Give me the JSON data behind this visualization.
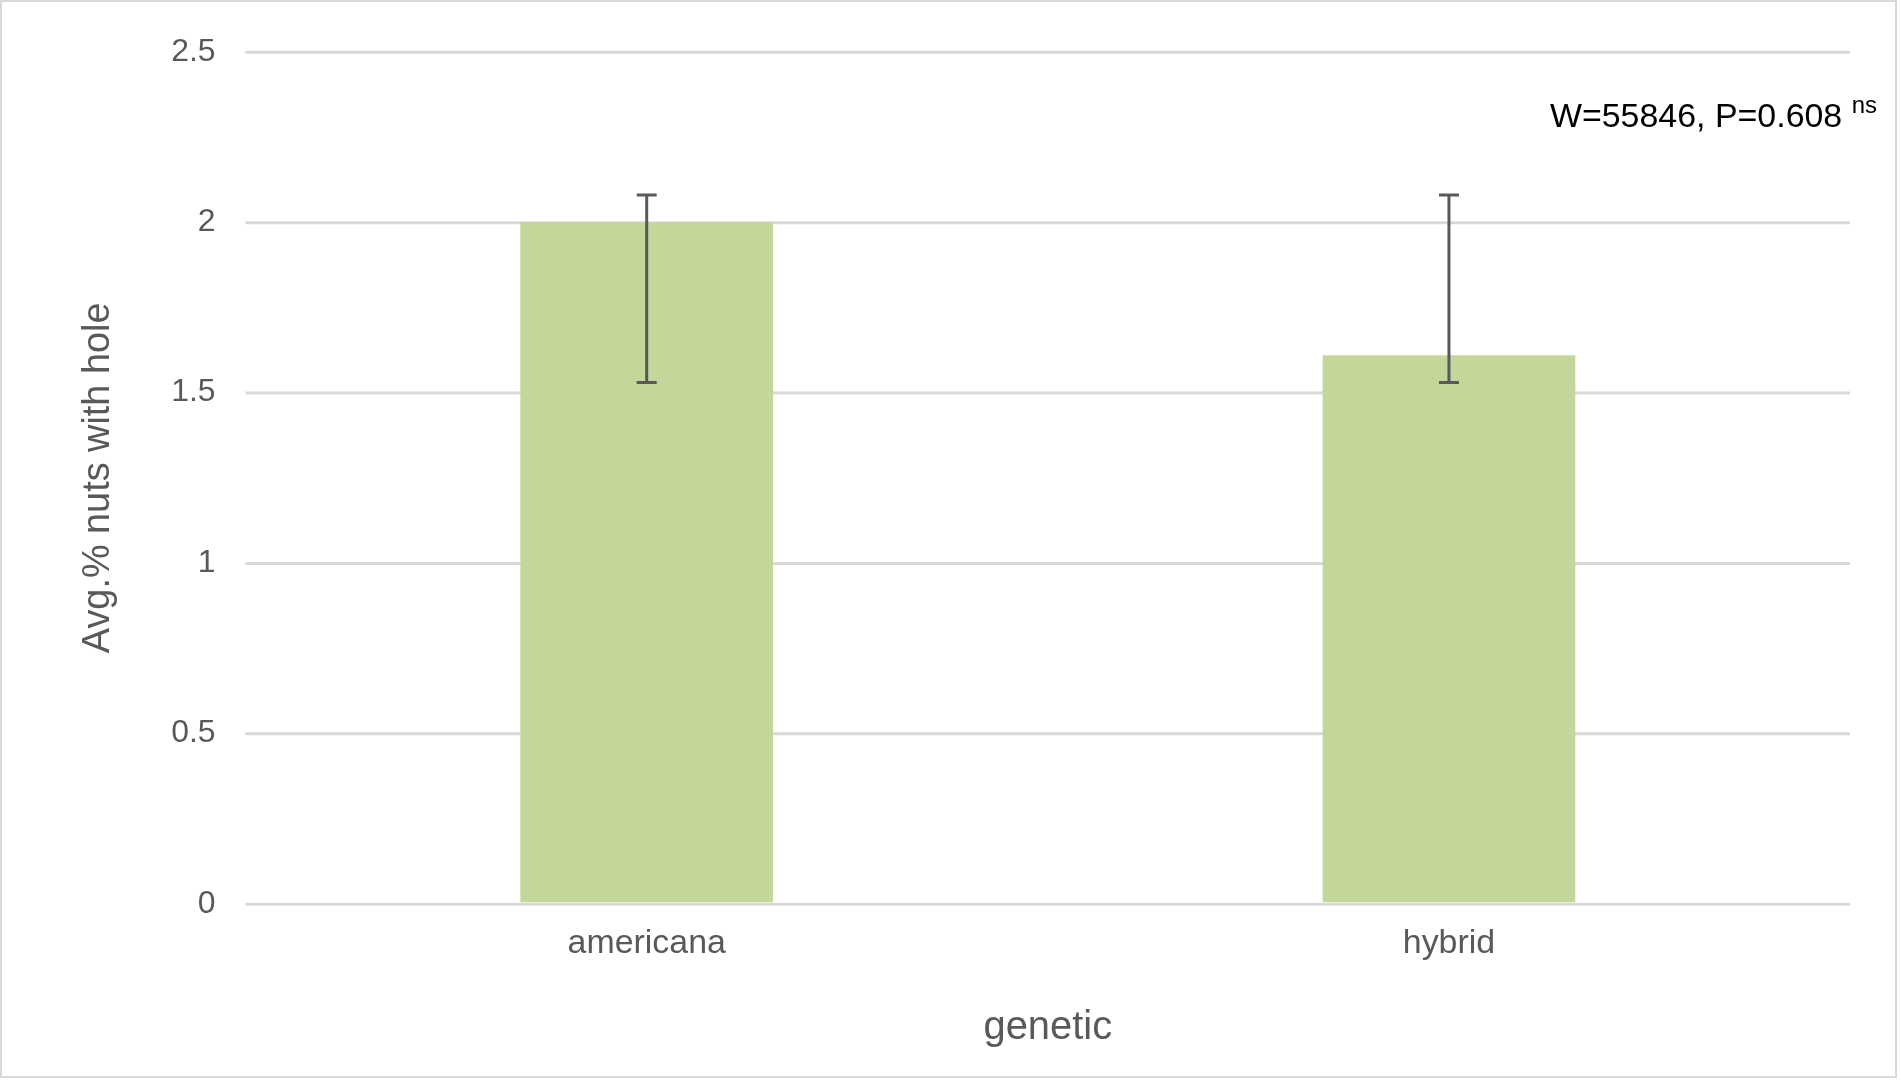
{
  "chart_data": {
    "type": "bar",
    "xlabel": "genetic",
    "ylabel": "Avg.% nuts with hole",
    "categories": [
      "americana",
      "hybrid"
    ],
    "values": [
      2.0,
      1.61
    ],
    "errors": [
      [
        1.53,
        2.08
      ],
      [
        1.53,
        2.08
      ]
    ],
    "color": "#c4d79b",
    "ylim": [
      0,
      2.5
    ],
    "yticks": [
      0,
      0.5,
      1,
      1.5,
      2,
      2.5
    ],
    "grid": "y",
    "annotations": [
      "W=55846, P=0.608 $^{ns}$"
    ]
  }
}
